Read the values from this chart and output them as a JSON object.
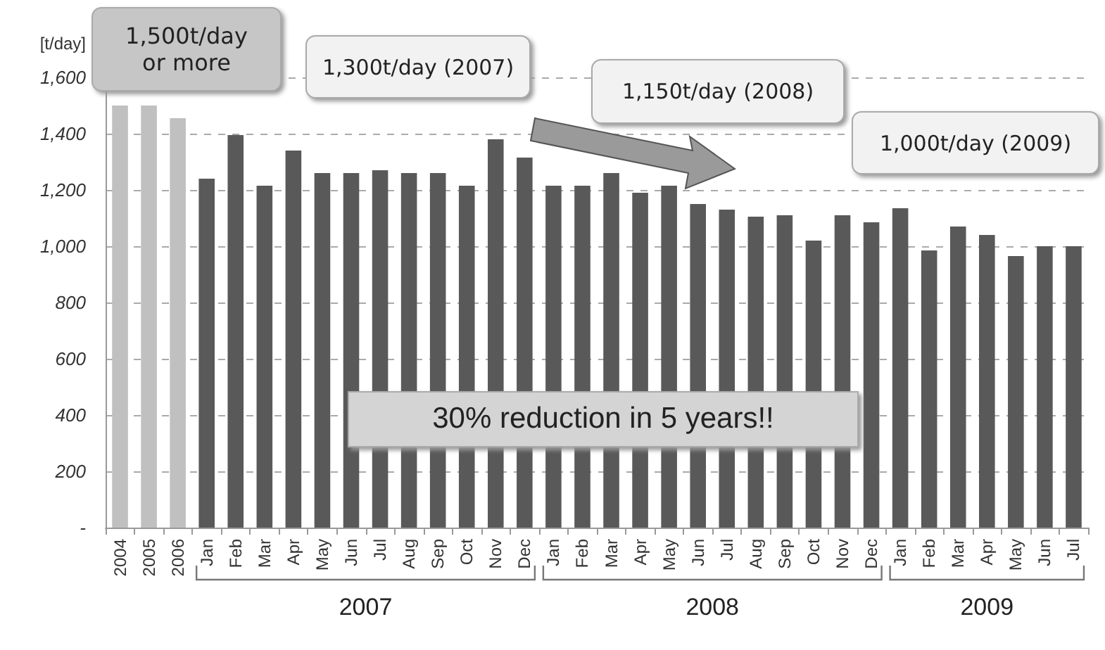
{
  "chart_data": {
    "type": "bar",
    "ylabel": "[t/day]",
    "categories": [
      "2004",
      "2005",
      "2006",
      "Jan",
      "Feb",
      "Mar",
      "Apr",
      "May",
      "Jun",
      "Jul",
      "Aug",
      "Sep",
      "Oct",
      "Nov",
      "Dec",
      "Jan",
      "Feb",
      "Mar",
      "Apr",
      "May",
      "Jun",
      "Jul",
      "Aug",
      "Sep",
      "Oct",
      "Nov",
      "Dec",
      "Jan",
      "Feb",
      "Mar",
      "Apr",
      "May",
      "Jun",
      "Jul"
    ],
    "values": [
      1500,
      1500,
      1455,
      1240,
      1395,
      1215,
      1340,
      1260,
      1260,
      1270,
      1260,
      1260,
      1215,
      1380,
      1315,
      1215,
      1215,
      1260,
      1190,
      1215,
      1150,
      1130,
      1105,
      1110,
      1020,
      1110,
      1085,
      1135,
      985,
      1070,
      1040,
      965,
      1000,
      1000
    ],
    "colors": [
      "#c0c0c0",
      "#c0c0c0",
      "#c0c0c0",
      "#595959",
      "#595959",
      "#595959",
      "#595959",
      "#595959",
      "#595959",
      "#595959",
      "#595959",
      "#595959",
      "#595959",
      "#595959",
      "#595959",
      "#595959",
      "#595959",
      "#595959",
      "#595959",
      "#595959",
      "#595959",
      "#595959",
      "#595959",
      "#595959",
      "#595959",
      "#595959",
      "#595959",
      "#595959",
      "#595959",
      "#595959",
      "#595959",
      "#595959",
      "#595959",
      "#595959"
    ],
    "ylim": [
      0,
      1600
    ],
    "yticks": [
      {
        "value": 0,
        "label": "-"
      },
      {
        "value": 200,
        "label": "200"
      },
      {
        "value": 400,
        "label": "400"
      },
      {
        "value": 600,
        "label": "600"
      },
      {
        "value": 800,
        "label": "800"
      },
      {
        "value": 1000,
        "label": "1,000"
      },
      {
        "value": 1200,
        "label": "1,200"
      },
      {
        "value": 1400,
        "label": "1,400"
      },
      {
        "value": 1600,
        "label": "1,600"
      }
    ],
    "grid": "y",
    "annotations": [
      "1,500t/day or more",
      "1,300t/day (2007)",
      "1,150t/day (2008)",
      "1,000t/day (2009)",
      "30% reduction in 5 years!!",
      "2007",
      "2008",
      "2009"
    ]
  }
}
